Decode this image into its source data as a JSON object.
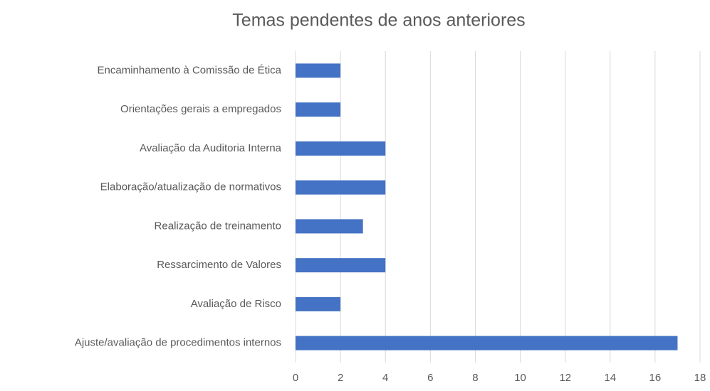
{
  "chart_data": {
    "type": "bar",
    "orientation": "horizontal",
    "title": "Temas pendentes de anos anteriores",
    "categories": [
      "Encaminhamento à Comissão de Ética",
      "Orientações gerais a empregados",
      "Avaliação da Auditoria Interna",
      "Elaboração/atualização de normativos",
      "Realização de treinamento",
      "Ressarcimento de Valores",
      "Avaliação de Risco",
      "Ajuste/avaliação de procedimentos internos"
    ],
    "values": [
      2,
      2,
      4,
      4,
      3,
      4,
      2,
      17
    ],
    "color": "#4472c4",
    "xlim": [
      0,
      18
    ],
    "xticks": [
      0,
      2,
      4,
      6,
      8,
      10,
      12,
      14,
      16,
      18
    ],
    "grid": true
  }
}
